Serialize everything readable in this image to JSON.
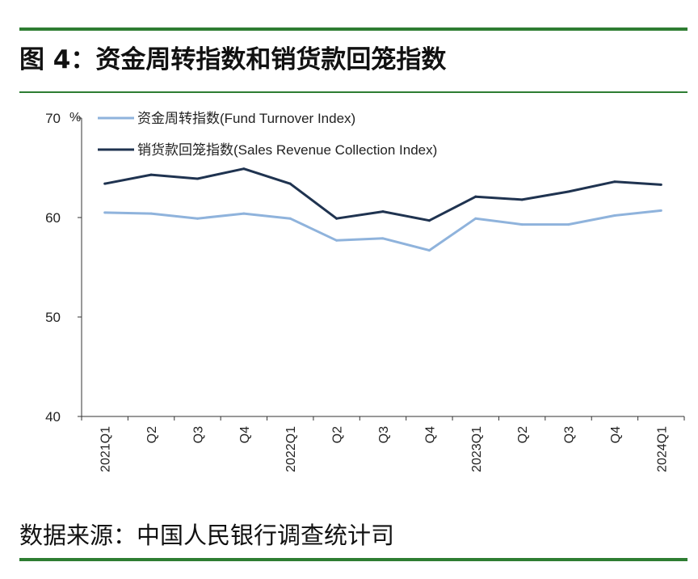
{
  "figure": {
    "title": "图 4：资金周转指数和销货款回笼指数",
    "source": "数据来源：中国人民银行调查统计司",
    "rule_color": "#2e7d32"
  },
  "chart_data": {
    "type": "line",
    "unit": "%",
    "categories": [
      "2021Q1",
      "Q2",
      "Q3",
      "Q4",
      "2022Q1",
      "Q2",
      "Q3",
      "Q4",
      "2023Q1",
      "Q2",
      "Q3",
      "Q4",
      "2024Q1"
    ],
    "ylim": [
      40,
      70
    ],
    "yticks": [
      40,
      50,
      60,
      70
    ],
    "grid": false,
    "legend_position": "top-left",
    "series": [
      {
        "name": "资金周转指数(Fund Turnover Index)",
        "color": "#8fb3dc",
        "values": [
          60.5,
          60.4,
          59.9,
          60.4,
          59.9,
          57.7,
          57.9,
          56.7,
          59.9,
          59.3,
          59.3,
          60.2,
          60.7
        ]
      },
      {
        "name": "销货款回笼指数(Sales Revenue Collection Index)",
        "color": "#1f3350",
        "values": [
          63.4,
          64.3,
          63.9,
          64.9,
          63.4,
          59.9,
          60.6,
          59.7,
          62.1,
          61.8,
          62.6,
          63.6,
          63.3
        ]
      }
    ]
  }
}
